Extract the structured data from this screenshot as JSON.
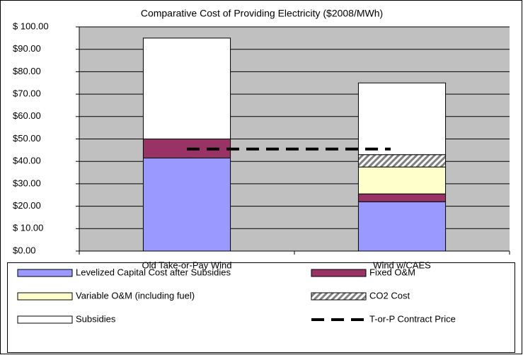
{
  "chart_data": {
    "type": "bar",
    "stacked": true,
    "title": "Comparative Cost of Providing Electricity ($2008/MWh)",
    "categories": [
      "Old Take-or-Pay Wind",
      "Wind w/CAES"
    ],
    "series": [
      {
        "name": "Levelized Capital Cost after Subsidies",
        "color": "#9999ff",
        "values": [
          41.5,
          22
        ]
      },
      {
        "name": "Fixed O&M",
        "color": "#993366",
        "values": [
          8.5,
          3.5
        ]
      },
      {
        "name": "Variable O&M  (including fuel)",
        "color": "#ffffcc",
        "values": [
          0,
          12
        ]
      },
      {
        "name": "CO2 Cost",
        "color": "#808080",
        "hatch": true,
        "values": [
          0,
          5.5
        ]
      },
      {
        "name": "Subsidies",
        "color": "#ffffff",
        "values": [
          45,
          32
        ]
      },
      {
        "name": "T-or-P Contract Price",
        "type": "line",
        "color": "#000000",
        "values": [
          45.5,
          45.5
        ]
      }
    ],
    "ylim": [
      0,
      100
    ],
    "yticks": [
      {
        "value": 0,
        "label": "$0.00"
      },
      {
        "value": 10,
        "label": "$ 10.00"
      },
      {
        "value": 20,
        "label": "$20.00"
      },
      {
        "value": 30,
        "label": "$30.00"
      },
      {
        "value": 40,
        "label": "$40.00"
      },
      {
        "value": 50,
        "label": "$50.00"
      },
      {
        "value": 60,
        "label": "$60.00"
      },
      {
        "value": 70,
        "label": "$70.00"
      },
      {
        "value": 80,
        "label": "$80.00"
      },
      {
        "value": 90,
        "label": "$90.00"
      },
      {
        "value": 100,
        "label": "$ 100.00"
      }
    ],
    "grid": true,
    "legend": "bottom"
  }
}
